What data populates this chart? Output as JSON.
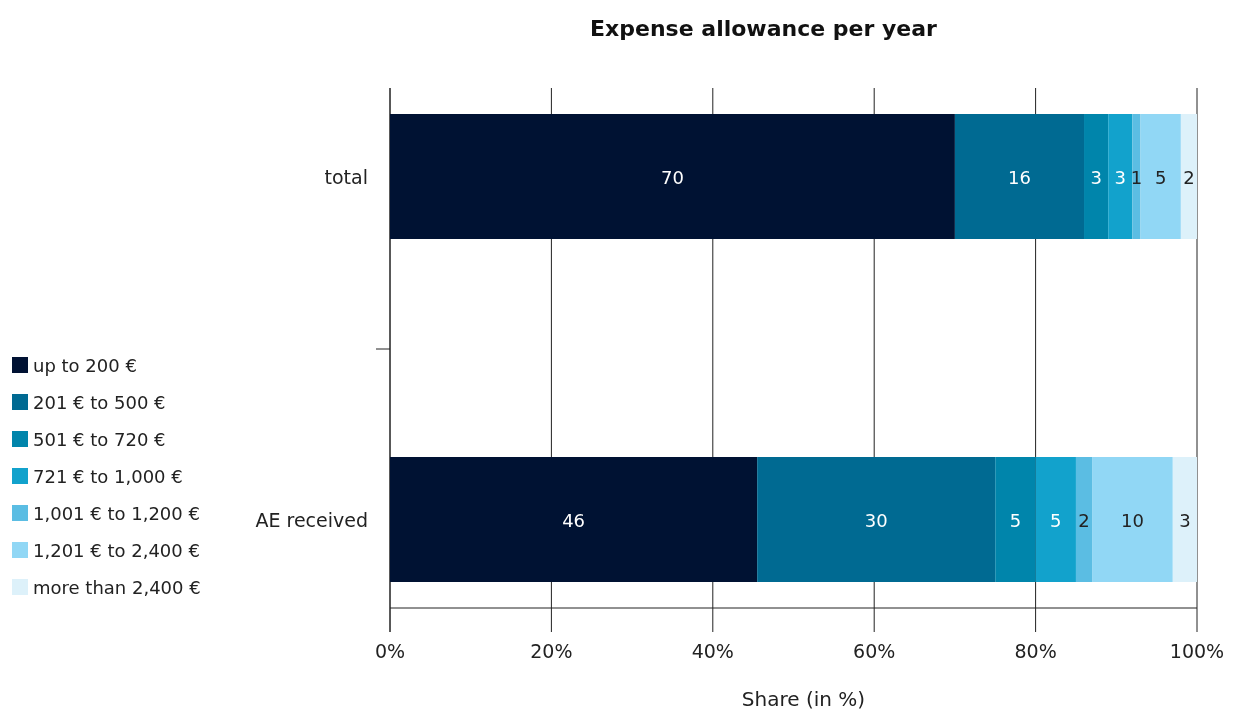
{
  "chart_data": {
    "type": "bar",
    "orientation": "horizontal",
    "stacked": true,
    "title": "Expense allowance per year",
    "xlabel": "Share (in %)",
    "categories": [
      "total",
      "AE received"
    ],
    "series": [
      {
        "name": "up to 200 €",
        "color": "#001233",
        "values": [
          70,
          45.5
        ],
        "value_labels": [
          "70",
          "46"
        ]
      },
      {
        "name": "201 € to 500 €",
        "color": "#006a92",
        "values": [
          16,
          29.5
        ],
        "value_labels": [
          "16",
          "30"
        ]
      },
      {
        "name": "501 € to 720 €",
        "color": "#0085ab",
        "values": [
          3,
          5
        ],
        "value_labels": [
          "3",
          "5"
        ]
      },
      {
        "name": "721 € to 1,000 €",
        "color": "#12a2cc",
        "values": [
          3,
          5
        ],
        "value_labels": [
          "3",
          "5"
        ]
      },
      {
        "name": "1,001 € to 1,200 €",
        "color": "#5bbde3",
        "values": [
          1,
          2
        ],
        "value_labels": [
          "1",
          "2"
        ]
      },
      {
        "name": "1,201 € to 2,400 €",
        "color": "#91d7f5",
        "values": [
          5,
          10
        ],
        "value_labels": [
          "5",
          "10"
        ]
      },
      {
        "name": "more than 2,400 €",
        "color": "#ddf1fa",
        "values": [
          2,
          3
        ],
        "value_labels": [
          "2",
          "3"
        ]
      }
    ],
    "xlim": [
      0,
      100
    ],
    "xticks": [
      {
        "value": 0,
        "label": "0%"
      },
      {
        "value": 20,
        "label": "20%"
      },
      {
        "value": 40,
        "label": "40%"
      },
      {
        "value": 60,
        "label": "60%"
      },
      {
        "value": 80,
        "label": "80%"
      },
      {
        "value": 100,
        "label": "100%"
      }
    ],
    "grid": "x",
    "legend": "left"
  }
}
